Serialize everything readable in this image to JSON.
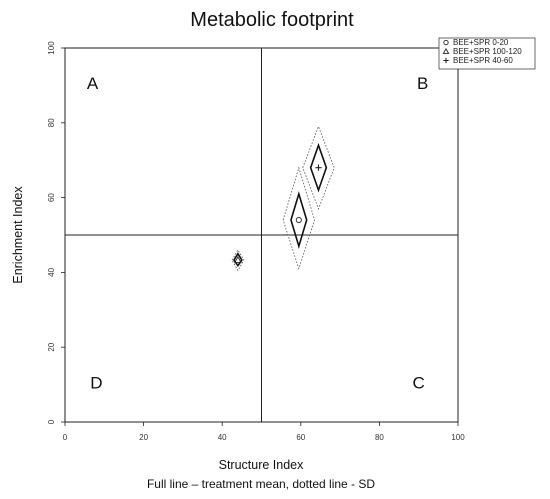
{
  "chart_data": {
    "type": "scatter",
    "title": "Metabolic footprint",
    "xlabel": "Structure Index",
    "ylabel": "Enrichment Index",
    "caption": "Full line – treatment mean, dotted line - SD",
    "xlim": [
      0,
      100
    ],
    "ylim": [
      0,
      100
    ],
    "x_ticks": [
      "0",
      "20",
      "40",
      "60",
      "80",
      "100"
    ],
    "y_ticks": [
      "0",
      "20",
      "40",
      "60",
      "80",
      "100"
    ],
    "reference_lines": {
      "x": 50,
      "y": 50
    },
    "quadrants": [
      {
        "label": "A",
        "position": "top-left"
      },
      {
        "label": "B",
        "position": "top-right"
      },
      {
        "label": "C",
        "position": "bottom-right"
      },
      {
        "label": "D",
        "position": "bottom-left"
      }
    ],
    "legend_position": "top-right",
    "series": [
      {
        "name": "BEE+SPR 0-20",
        "marker": "circle",
        "x": 59.5,
        "y": 54,
        "mean_x_range": [
          57.5,
          61.5
        ],
        "mean_y_range": [
          47,
          61
        ],
        "sd_x_range": [
          55.5,
          63.5
        ],
        "sd_y_range": [
          41,
          68
        ]
      },
      {
        "name": "BEE+SPR 100-120",
        "marker": "triangle",
        "x": 44,
        "y": 43.3,
        "mean_x_range": [
          43,
          45
        ],
        "mean_y_range": [
          41.8,
          45
        ],
        "sd_x_range": [
          42.5,
          45.5
        ],
        "sd_y_range": [
          40.5,
          46
        ]
      },
      {
        "name": "BEE+SPR 40-60",
        "marker": "plus",
        "x": 64.5,
        "y": 68,
        "mean_x_range": [
          62.5,
          66.5
        ],
        "mean_y_range": [
          62,
          74
        ],
        "sd_x_range": [
          60.5,
          68.5
        ],
        "sd_y_range": [
          57,
          79
        ]
      }
    ]
  }
}
